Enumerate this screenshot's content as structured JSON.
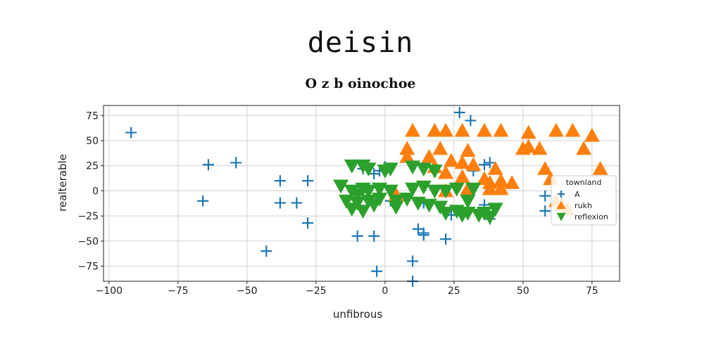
{
  "figure_title": "deisin",
  "chart_data": {
    "type": "scatter",
    "title": "O z b oinochoe",
    "xlabel": "unfibrous",
    "ylabel": "realterable",
    "xlim": [
      -102,
      85
    ],
    "ylim": [
      -90,
      85
    ],
    "xticks": [
      -100,
      -75,
      -50,
      -25,
      0,
      25,
      50,
      75
    ],
    "yticks": [
      -75,
      -50,
      -25,
      0,
      25,
      50,
      75
    ],
    "grid": true,
    "legend": {
      "title": "townland",
      "placement": "right"
    },
    "series": [
      {
        "name": "A",
        "marker": "plus",
        "color": "#1f77b4",
        "points": [
          [
            -92,
            58
          ],
          [
            -64,
            26
          ],
          [
            -54,
            28
          ],
          [
            -66,
            -10
          ],
          [
            -38,
            10
          ],
          [
            -28,
            10
          ],
          [
            -38,
            -12
          ],
          [
            -32,
            -12
          ],
          [
            -28,
            -32
          ],
          [
            -43,
            -60
          ],
          [
            -10,
            -45
          ],
          [
            -4,
            -45
          ],
          [
            -3,
            -80
          ],
          [
            10,
            -70
          ],
          [
            10,
            -90
          ],
          [
            12,
            -38
          ],
          [
            14,
            -44
          ],
          [
            14,
            -42
          ],
          [
            22,
            -48
          ],
          [
            27,
            78
          ],
          [
            31,
            70
          ],
          [
            32,
            20
          ],
          [
            36,
            26
          ],
          [
            38,
            28
          ],
          [
            36,
            -14
          ],
          [
            38,
            -28
          ],
          [
            58,
            -5
          ],
          [
            58,
            -20
          ],
          [
            -8,
            22
          ],
          [
            -4,
            17
          ],
          [
            -2,
            20
          ],
          [
            0,
            24
          ],
          [
            2,
            -10
          ],
          [
            14,
            -12
          ],
          [
            24,
            -24
          ]
        ]
      },
      {
        "name": "rukh",
        "marker": "triangle-up",
        "color": "#ff7f0e",
        "points": [
          [
            10,
            60
          ],
          [
            18,
            60
          ],
          [
            22,
            60
          ],
          [
            28,
            60
          ],
          [
            36,
            60
          ],
          [
            42,
            60
          ],
          [
            52,
            58
          ],
          [
            62,
            60
          ],
          [
            68,
            60
          ],
          [
            75,
            55
          ],
          [
            8,
            42
          ],
          [
            20,
            42
          ],
          [
            30,
            40
          ],
          [
            50,
            42
          ],
          [
            52,
            44
          ],
          [
            56,
            42
          ],
          [
            72,
            42
          ],
          [
            8,
            34
          ],
          [
            16,
            34
          ],
          [
            24,
            30
          ],
          [
            28,
            28
          ],
          [
            32,
            26
          ],
          [
            40,
            22
          ],
          [
            58,
            22
          ],
          [
            78,
            22
          ],
          [
            18,
            24
          ],
          [
            22,
            18
          ],
          [
            28,
            14
          ],
          [
            36,
            12
          ],
          [
            42,
            10
          ],
          [
            46,
            8
          ],
          [
            60,
            12
          ],
          [
            22,
            0
          ],
          [
            30,
            2
          ],
          [
            38,
            2
          ],
          [
            42,
            2
          ],
          [
            62,
            -10
          ],
          [
            64,
            -14
          ],
          [
            66,
            -18
          ],
          [
            4,
            -4
          ],
          [
            38,
            8
          ]
        ]
      },
      {
        "name": "reflexion",
        "marker": "triangle-down",
        "color": "#2ca02c",
        "points": [
          [
            -12,
            25
          ],
          [
            -8,
            25
          ],
          [
            -6,
            22
          ],
          [
            0,
            20
          ],
          [
            2,
            22
          ],
          [
            10,
            24
          ],
          [
            14,
            22
          ],
          [
            18,
            20
          ],
          [
            -16,
            5
          ],
          [
            -12,
            0
          ],
          [
            -8,
            2
          ],
          [
            -6,
            0
          ],
          [
            -2,
            2
          ],
          [
            2,
            0
          ],
          [
            10,
            2
          ],
          [
            14,
            4
          ],
          [
            18,
            0
          ],
          [
            22,
            0
          ],
          [
            26,
            2
          ],
          [
            32,
            2
          ],
          [
            -14,
            -10
          ],
          [
            -10,
            -12
          ],
          [
            -6,
            -10
          ],
          [
            -2,
            -8
          ],
          [
            4,
            -10
          ],
          [
            12,
            -12
          ],
          [
            16,
            -14
          ],
          [
            20,
            -16
          ],
          [
            26,
            -20
          ],
          [
            30,
            -22
          ],
          [
            34,
            -24
          ],
          [
            38,
            -26
          ],
          [
            -12,
            -18
          ],
          [
            -8,
            -20
          ],
          [
            4,
            -16
          ],
          [
            22,
            -22
          ],
          [
            28,
            -24
          ],
          [
            36,
            -22
          ],
          [
            40,
            -18
          ],
          [
            -4,
            -14
          ],
          [
            8,
            -8
          ],
          [
            30,
            -10
          ],
          [
            -10,
            -4
          ]
        ]
      }
    ]
  }
}
